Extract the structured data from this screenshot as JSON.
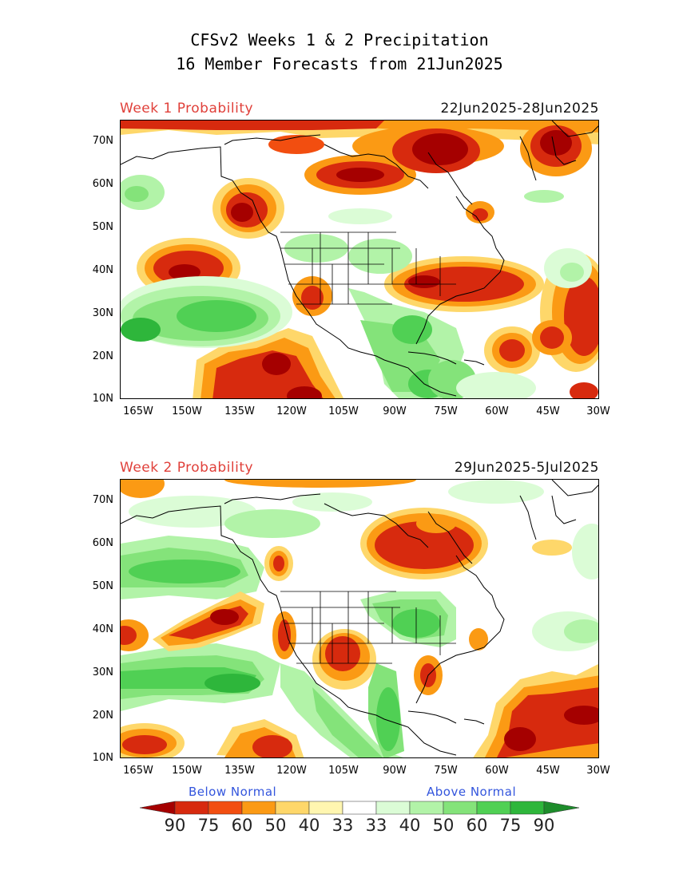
{
  "header": {
    "title_line1": "CFSv2 Weeks 1 & 2 Precipitation",
    "title_line2": "16 Member Forecasts from 21Jun2025"
  },
  "panels": [
    {
      "label": "Week 1 Probability",
      "dates": "22Jun2025-28Jun2025"
    },
    {
      "label": "Week 2 Probability",
      "dates": "29Jun2025-5Jul2025"
    }
  ],
  "axes": {
    "lat_labels": [
      "70N",
      "60N",
      "50N",
      "40N",
      "30N",
      "20N",
      "10N"
    ],
    "lon_labels": [
      "165W",
      "150W",
      "135W",
      "120W",
      "105W",
      "90W",
      "75W",
      "60W",
      "45W",
      "30W"
    ],
    "lat_range": [
      10,
      75
    ],
    "lon_range": [
      -170,
      -30
    ]
  },
  "legend": {
    "below_label": "Below Normal",
    "above_label": "Above Normal",
    "tick_values": [
      "90",
      "75",
      "60",
      "50",
      "40",
      "33",
      "33",
      "40",
      "50",
      "60",
      "75",
      "90"
    ],
    "colors": {
      "b90": "#a50000",
      "b75": "#d72a0e",
      "b60": "#f24e10",
      "b50": "#fb9a14",
      "b40": "#fed76a",
      "b33": "#fff6b0",
      "neutral": "#ffffff",
      "a40": "#dbfcd6",
      "a50": "#b2f3a8",
      "a60": "#84e37a",
      "a75": "#50d054",
      "a90": "#2eb63b",
      "a_dark": "#1d8c2b"
    }
  }
}
